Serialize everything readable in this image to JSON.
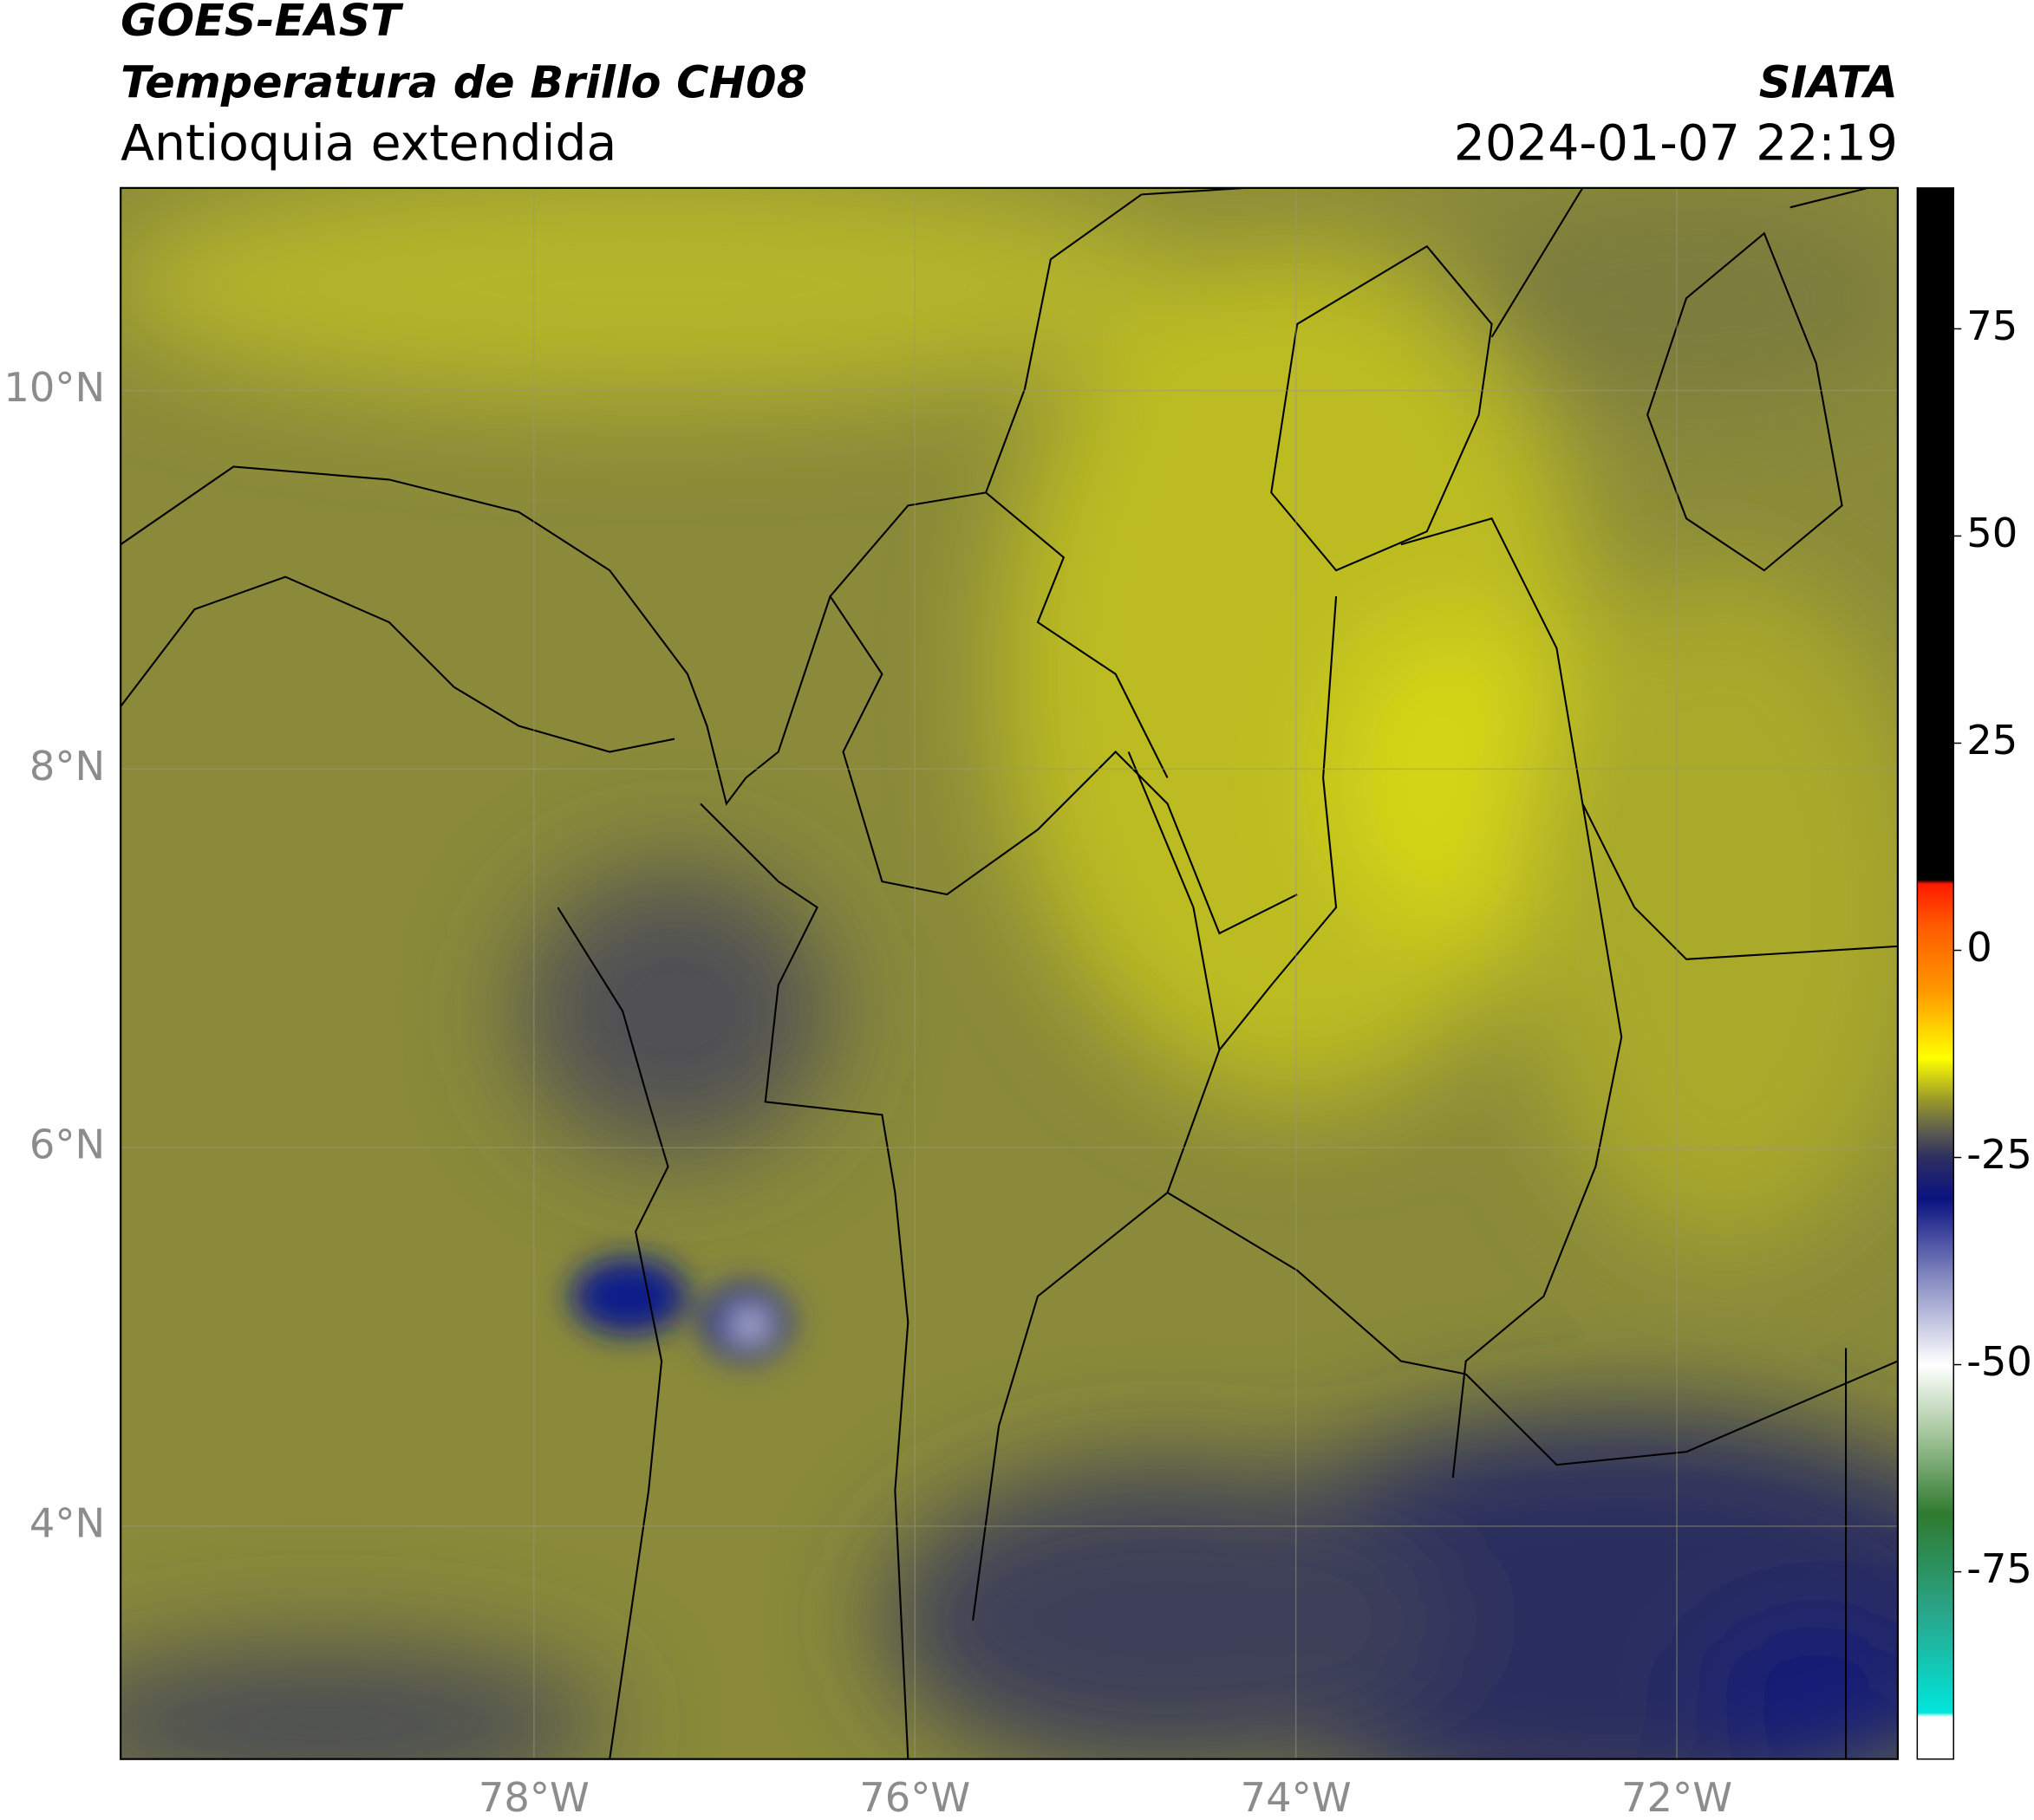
{
  "header": {
    "title": "GOES-EAST",
    "subtitle": "Temperatura de Brillo CH08",
    "region": "Antioquia extendida",
    "source": "SIATA",
    "datetime": "2024-01-07 22:19"
  },
  "map": {
    "xlim": [
      -80.17,
      -70.84
    ],
    "ylim": [
      2.77,
      11.07
    ],
    "xticks": [
      {
        "value": -78,
        "label": "78°W"
      },
      {
        "value": -76,
        "label": "76°W"
      },
      {
        "value": -74,
        "label": "74°W"
      },
      {
        "value": -72,
        "label": "72°W"
      }
    ],
    "yticks": [
      {
        "value": 10,
        "label": "10°N"
      },
      {
        "value": 8,
        "label": "8°N"
      },
      {
        "value": 6,
        "label": "6°N"
      },
      {
        "value": 4,
        "label": "4°N"
      }
    ],
    "grid": true
  },
  "colorbar": {
    "lim": [
      -97.6,
      92
    ],
    "ticks": [
      75,
      50,
      25,
      0,
      -25,
      -50,
      -75
    ],
    "stops": [
      {
        "value": -97.6,
        "color": "#ffffff"
      },
      {
        "value": -92.5,
        "color": "#ffffff"
      },
      {
        "value": -92,
        "color": "#00e5dc"
      },
      {
        "value": -80,
        "color": "#2aa58a"
      },
      {
        "value": -68,
        "color": "#2f7a2f"
      },
      {
        "value": -58,
        "color": "#a9c9a0"
      },
      {
        "value": -50,
        "color": "#ffffff"
      },
      {
        "value": -40,
        "color": "#8a8fc4"
      },
      {
        "value": -30,
        "color": "#0a1280"
      },
      {
        "value": -25,
        "color": "#2e2f60"
      },
      {
        "value": -22,
        "color": "#5a5a50"
      },
      {
        "value": -18,
        "color": "#9a9a2a"
      },
      {
        "value": -13,
        "color": "#ffff00"
      },
      {
        "value": -5,
        "color": "#ff9900"
      },
      {
        "value": 3,
        "color": "#ff5a00"
      },
      {
        "value": 8,
        "color": "#ff1a00"
      },
      {
        "value": 8.5,
        "color": "#000000"
      },
      {
        "value": 92,
        "color": "#000000"
      }
    ]
  }
}
